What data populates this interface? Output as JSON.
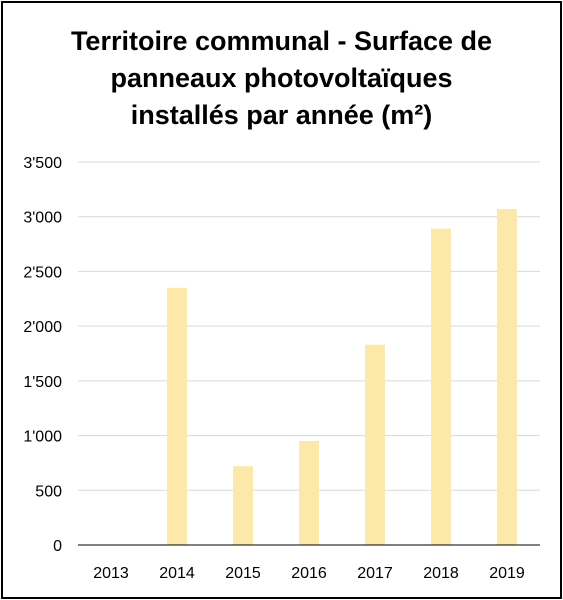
{
  "chart_data": {
    "type": "bar",
    "title": "Territoire communal - Surface de\npanneaux photovoltaïques\ninstallés par année (m²)",
    "xlabel": "",
    "ylabel": "",
    "categories": [
      "2013",
      "2014",
      "2015",
      "2016",
      "2017",
      "2018",
      "2019"
    ],
    "values": [
      0,
      2350,
      720,
      950,
      1830,
      2890,
      3070
    ],
    "ylim": [
      0,
      3500
    ],
    "yticks": [
      0,
      500,
      1000,
      1500,
      2000,
      2500,
      3000,
      3500
    ],
    "ytick_labels": [
      "0",
      "500",
      "1'000",
      "1'500",
      "2'000",
      "2'500",
      "3'000",
      "3'500"
    ],
    "grid": true,
    "legend": "none",
    "bar_color": "#FCE8A8",
    "grid_color": "#D9D9D9",
    "axis_color": "#000000"
  }
}
